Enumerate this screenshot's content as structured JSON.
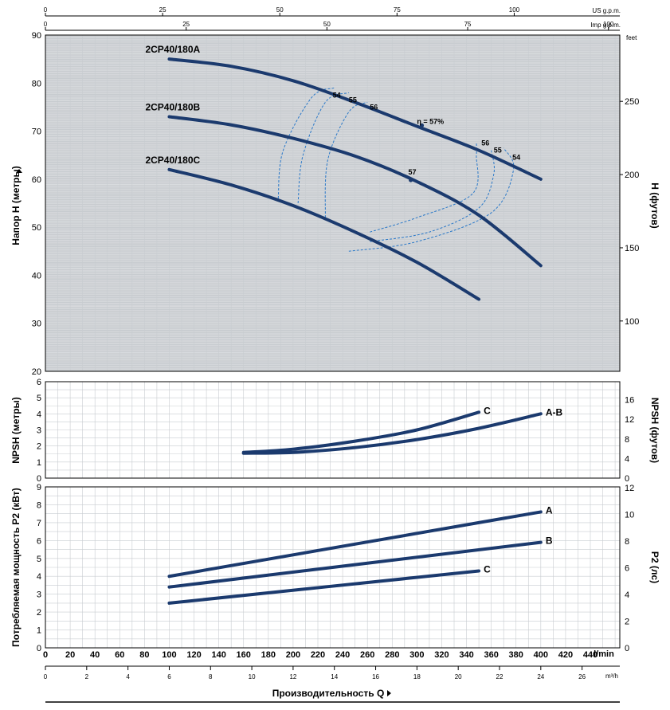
{
  "chart_data": [
    {
      "type": "line",
      "panel": "head",
      "ylabel": "Напор H (метры)",
      "ylabel_right": "H (футов)",
      "ylabel_right_unit": "feet",
      "ylim": [
        20,
        90
      ],
      "yticks": [
        20,
        30,
        40,
        50,
        60,
        70,
        80,
        90
      ],
      "yticks_right": [
        100,
        150,
        200,
        250
      ],
      "series": [
        {
          "name": "2CP40/180A",
          "x": [
            100,
            150,
            200,
            250,
            300,
            350,
            400
          ],
          "values": [
            85,
            83.5,
            80.5,
            76,
            71,
            66,
            60
          ]
        },
        {
          "name": "2CP40/180B",
          "x": [
            100,
            150,
            200,
            250,
            300,
            350,
            400
          ],
          "values": [
            73,
            71.3,
            68.5,
            64.8,
            59.5,
            52.5,
            42
          ]
        },
        {
          "name": "2CP40/180C",
          "x": [
            100,
            150,
            200,
            250,
            300,
            350
          ],
          "values": [
            62,
            58.8,
            54.5,
            49,
            42.7,
            35
          ]
        }
      ],
      "efficiency_labels": [
        {
          "text": "54",
          "x": 232,
          "y": 77
        },
        {
          "text": "55",
          "x": 245,
          "y": 76
        },
        {
          "text": "56",
          "x": 262,
          "y": 74.5
        },
        {
          "text": "η = 57%",
          "x": 300,
          "y": 71.5
        },
        {
          "text": "56",
          "x": 352,
          "y": 67
        },
        {
          "text": "55",
          "x": 362,
          "y": 65.5
        },
        {
          "text": "54",
          "x": 377,
          "y": 64
        },
        {
          "text": "57",
          "x": 293,
          "y": 61
        }
      ],
      "efficiency_points": [
        {
          "x": 304,
          "y": 71.2
        },
        {
          "x": 295,
          "y": 59.8
        }
      ],
      "efficiency_contours": [
        {
          "label": "54",
          "points": [
            [
              188,
              56
            ],
            [
              192,
              66
            ],
            [
              215,
              77
            ],
            [
              233,
              79
            ]
          ],
          "points2": [
            [
              245,
              45
            ],
            [
              300,
              47
            ],
            [
              360,
              53
            ],
            [
              378,
              62
            ],
            [
              370,
              66.5
            ]
          ]
        },
        {
          "label": "55",
          "points": [
            [
              204,
              55
            ],
            [
              208,
              65
            ],
            [
              226,
              76
            ],
            [
              245,
              78
            ]
          ],
          "points2": [
            [
              262,
              47
            ],
            [
              310,
              49
            ],
            [
              350,
              54
            ],
            [
              362,
              61
            ],
            [
              360,
              66
            ]
          ]
        },
        {
          "label": "56",
          "points": [
            [
              226,
              52
            ],
            [
              228,
              64
            ],
            [
              245,
              74
            ],
            [
              260,
              76
            ]
          ],
          "points2": [
            [
              262,
              49
            ],
            [
              300,
              52
            ],
            [
              345,
              57
            ],
            [
              348,
              65
            ],
            [
              348,
              67.5
            ]
          ]
        }
      ]
    },
    {
      "type": "line",
      "panel": "npsh",
      "ylabel": "NPSH (метры)",
      "ylabel_right": "NPSH (футов)",
      "ylim": [
        0,
        6
      ],
      "yticks": [
        0,
        1,
        2,
        3,
        4,
        5,
        6
      ],
      "yticks_right": [
        0,
        4,
        8,
        12,
        16
      ],
      "series": [
        {
          "name": "C",
          "x": [
            160,
            200,
            250,
            300,
            350
          ],
          "values": [
            1.6,
            1.8,
            2.3,
            3.0,
            4.1
          ]
        },
        {
          "name": "A-B",
          "x": [
            160,
            200,
            250,
            300,
            350,
            400
          ],
          "values": [
            1.55,
            1.6,
            1.9,
            2.4,
            3.1,
            4.0
          ]
        }
      ]
    },
    {
      "type": "line",
      "panel": "power",
      "ylabel": "Потребляемая мощность P2 (кВт)",
      "ylabel_right": "P2 (лс)",
      "ylim": [
        0,
        9
      ],
      "yticks": [
        0,
        1,
        2,
        3,
        4,
        5,
        6,
        7,
        8,
        9
      ],
      "yticks_right": [
        0,
        2,
        4,
        6,
        8,
        10,
        12
      ],
      "series": [
        {
          "name": "A",
          "x": [
            100,
            400
          ],
          "values": [
            4.0,
            7.6
          ]
        },
        {
          "name": "B",
          "x": [
            100,
            400
          ],
          "values": [
            3.4,
            5.9
          ]
        },
        {
          "name": "C",
          "x": [
            100,
            350
          ],
          "values": [
            2.5,
            4.3
          ]
        }
      ]
    }
  ],
  "axes": {
    "x_lmin_ticks": [
      "0",
      "20",
      "40",
      "60",
      "80",
      "100",
      "120",
      "140",
      "160",
      "180",
      "200",
      "220",
      "240",
      "260",
      "280",
      "300",
      "320",
      "340",
      "360",
      "380",
      "400",
      "420",
      "440"
    ],
    "x_lmin_unit": "l/min",
    "x_m3h_ticks": [
      "0",
      "2",
      "4",
      "6",
      "8",
      "10",
      "12",
      "14",
      "16",
      "18",
      "20",
      "22",
      "24",
      "26"
    ],
    "x_m3h_unit": "m³/h",
    "x_usgpm_ticks": [
      "0",
      "25",
      "50",
      "75",
      "100"
    ],
    "x_usgpm_unit": "US g.p.m.",
    "x_impgpm_ticks": [
      "0",
      "25",
      "50",
      "75",
      "100"
    ],
    "x_impgpm_unit": "Imp g.p.m.",
    "xlabel": "Производительность Q",
    "xlim": [
      0,
      460
    ]
  },
  "colors": {
    "curve": "#1b3a6e",
    "efficiency": "#2a78c8",
    "grid": "#c8ccd0"
  }
}
